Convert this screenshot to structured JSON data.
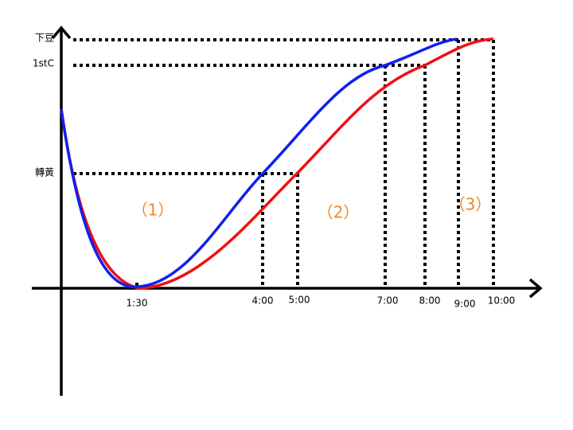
{
  "y_labels": [
    "下豆",
    "1stC",
    "轉黃"
  ],
  "x_labels": [
    "1:30",
    "4:00",
    "5:00",
    "7:00",
    "8:00",
    "9:00",
    "10:00"
  ],
  "phases": [
    "（1）",
    "（2）",
    "（3）"
  ]
}
